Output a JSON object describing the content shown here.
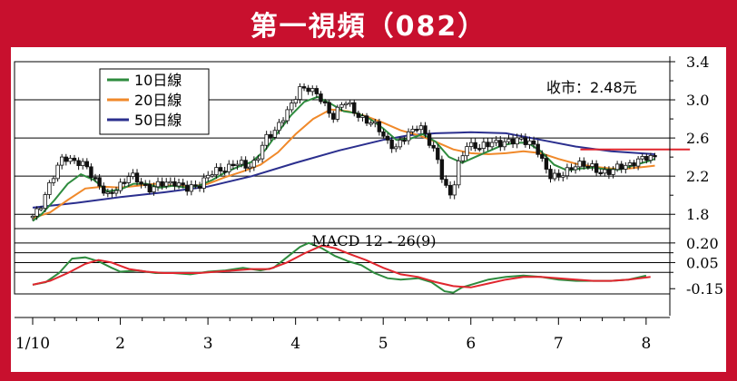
{
  "header": {
    "title": "第一視頻（082）"
  },
  "colors": {
    "frame": "#c8102e",
    "up_candle": "#ffffff",
    "down_candle": "#111111",
    "ma10": "#2e8b3e",
    "ma20": "#f0892a",
    "ma50": "#2b2f8e",
    "price_line": "#e0262e",
    "macd": "#2e8b3e",
    "signal": "#e0262e"
  },
  "chart_data": [
    {
      "type": "candlestick",
      "title": "",
      "price_label": "收市：2.48元",
      "current_price": 2.48,
      "ylim": [
        1.65,
        3.4
      ],
      "y_ticks": [
        {
          "value": 3.4,
          "label": "3.4"
        },
        {
          "value": 3.0,
          "label": "3.0"
        },
        {
          "value": 2.6,
          "label": "2.6"
        },
        {
          "value": 2.2,
          "label": "2.2"
        },
        {
          "value": 1.8,
          "label": "1.8"
        }
      ],
      "grid_values": [
        3.0,
        2.6,
        2.2,
        1.8
      ],
      "grid": true,
      "x_range": [
        1.0,
        8.25
      ],
      "x_ticks": [
        {
          "value": 1.0,
          "label": "1/10"
        },
        {
          "value": 2.0,
          "label": "2"
        },
        {
          "value": 3.0,
          "label": "3"
        },
        {
          "value": 4.0,
          "label": "4"
        },
        {
          "value": 5.0,
          "label": "5"
        },
        {
          "value": 6.0,
          "label": "6"
        },
        {
          "value": 7.0,
          "label": "7"
        },
        {
          "value": 8.0,
          "label": "8"
        }
      ],
      "legend_position": "top-left",
      "legend": [
        {
          "name": "10日線",
          "color_key": "ma10"
        },
        {
          "name": "20日線",
          "color_key": "ma20"
        },
        {
          "name": "50日線",
          "color_key": "ma50"
        }
      ],
      "close_anchors": [
        [
          1.0,
          1.78
        ],
        [
          1.1,
          1.92
        ],
        [
          1.22,
          2.15
        ],
        [
          1.35,
          2.43
        ],
        [
          1.5,
          2.33
        ],
        [
          1.62,
          2.3
        ],
        [
          1.75,
          2.12
        ],
        [
          1.85,
          1.97
        ],
        [
          1.95,
          2.08
        ],
        [
          2.1,
          2.2
        ],
        [
          2.2,
          2.15
        ],
        [
          2.35,
          2.07
        ],
        [
          2.5,
          2.12
        ],
        [
          2.62,
          2.15
        ],
        [
          2.75,
          2.05
        ],
        [
          2.9,
          2.12
        ],
        [
          3.0,
          2.2
        ],
        [
          3.15,
          2.27
        ],
        [
          3.3,
          2.33
        ],
        [
          3.45,
          2.3
        ],
        [
          3.55,
          2.37
        ],
        [
          3.65,
          2.57
        ],
        [
          3.75,
          2.66
        ],
        [
          3.85,
          2.82
        ],
        [
          3.95,
          2.92
        ],
        [
          4.05,
          3.12
        ],
        [
          4.15,
          3.14
        ],
        [
          4.3,
          2.98
        ],
        [
          4.42,
          2.83
        ],
        [
          4.55,
          2.98
        ],
        [
          4.7,
          2.86
        ],
        [
          4.85,
          2.75
        ],
        [
          4.95,
          2.7
        ],
        [
          5.05,
          2.57
        ],
        [
          5.15,
          2.48
        ],
        [
          5.28,
          2.65
        ],
        [
          5.4,
          2.75
        ],
        [
          5.52,
          2.55
        ],
        [
          5.62,
          2.4
        ],
        [
          5.7,
          2.1
        ],
        [
          5.78,
          1.97
        ],
        [
          5.86,
          2.32
        ],
        [
          5.95,
          2.55
        ],
        [
          6.1,
          2.48
        ],
        [
          6.25,
          2.58
        ],
        [
          6.35,
          2.53
        ],
        [
          6.45,
          2.55
        ],
        [
          6.55,
          2.62
        ],
        [
          6.65,
          2.55
        ],
        [
          6.75,
          2.48
        ],
        [
          6.82,
          2.36
        ],
        [
          6.9,
          2.22
        ],
        [
          7.0,
          2.17
        ],
        [
          7.1,
          2.26
        ],
        [
          7.2,
          2.34
        ],
        [
          7.3,
          2.3
        ],
        [
          7.4,
          2.29
        ],
        [
          7.5,
          2.25
        ],
        [
          7.6,
          2.23
        ],
        [
          7.7,
          2.31
        ],
        [
          7.8,
          2.33
        ],
        [
          7.9,
          2.34
        ],
        [
          8.0,
          2.4
        ],
        [
          8.1,
          2.42
        ]
      ],
      "ma10_points": [
        [
          1.0,
          1.73
        ],
        [
          1.1,
          1.8
        ],
        [
          1.25,
          1.95
        ],
        [
          1.4,
          2.12
        ],
        [
          1.55,
          2.22
        ],
        [
          1.7,
          2.16
        ],
        [
          1.85,
          2.04
        ],
        [
          2.0,
          2.06
        ],
        [
          2.15,
          2.12
        ],
        [
          2.3,
          2.12
        ],
        [
          2.45,
          2.08
        ],
        [
          2.6,
          2.1
        ],
        [
          2.75,
          2.08
        ],
        [
          2.9,
          2.1
        ],
        [
          3.05,
          2.16
        ],
        [
          3.2,
          2.24
        ],
        [
          3.35,
          2.3
        ],
        [
          3.5,
          2.35
        ],
        [
          3.65,
          2.47
        ],
        [
          3.8,
          2.66
        ],
        [
          3.95,
          2.84
        ],
        [
          4.1,
          2.98
        ],
        [
          4.25,
          3.03
        ],
        [
          4.4,
          2.96
        ],
        [
          4.55,
          2.88
        ],
        [
          4.7,
          2.86
        ],
        [
          4.85,
          2.8
        ],
        [
          5.0,
          2.7
        ],
        [
          5.15,
          2.58
        ],
        [
          5.3,
          2.59
        ],
        [
          5.45,
          2.64
        ],
        [
          5.6,
          2.56
        ],
        [
          5.75,
          2.4
        ],
        [
          5.9,
          2.34
        ],
        [
          6.05,
          2.4
        ],
        [
          6.2,
          2.46
        ],
        [
          6.35,
          2.52
        ],
        [
          6.5,
          2.55
        ],
        [
          6.65,
          2.55
        ],
        [
          6.8,
          2.46
        ],
        [
          6.95,
          2.32
        ],
        [
          7.1,
          2.26
        ],
        [
          7.25,
          2.28
        ],
        [
          7.4,
          2.29
        ],
        [
          7.55,
          2.27
        ],
        [
          7.7,
          2.27
        ],
        [
          7.85,
          2.31
        ],
        [
          8.0,
          2.35
        ],
        [
          8.1,
          2.38
        ]
      ],
      "ma20_points": [
        [
          1.0,
          1.76
        ],
        [
          1.2,
          1.82
        ],
        [
          1.4,
          1.95
        ],
        [
          1.6,
          2.07
        ],
        [
          1.8,
          2.09
        ],
        [
          2.0,
          2.08
        ],
        [
          2.2,
          2.1
        ],
        [
          2.4,
          2.12
        ],
        [
          2.6,
          2.1
        ],
        [
          2.8,
          2.09
        ],
        [
          3.0,
          2.12
        ],
        [
          3.2,
          2.19
        ],
        [
          3.4,
          2.25
        ],
        [
          3.6,
          2.32
        ],
        [
          3.8,
          2.45
        ],
        [
          4.0,
          2.64
        ],
        [
          4.2,
          2.8
        ],
        [
          4.4,
          2.9
        ],
        [
          4.6,
          2.88
        ],
        [
          4.8,
          2.83
        ],
        [
          5.0,
          2.76
        ],
        [
          5.2,
          2.68
        ],
        [
          5.4,
          2.63
        ],
        [
          5.6,
          2.56
        ],
        [
          5.8,
          2.48
        ],
        [
          6.0,
          2.44
        ],
        [
          6.2,
          2.43
        ],
        [
          6.4,
          2.44
        ],
        [
          6.6,
          2.46
        ],
        [
          6.8,
          2.44
        ],
        [
          7.0,
          2.38
        ],
        [
          7.2,
          2.33
        ],
        [
          7.4,
          2.3
        ],
        [
          7.6,
          2.28
        ],
        [
          7.8,
          2.28
        ],
        [
          8.0,
          2.3
        ],
        [
          8.1,
          2.31
        ]
      ],
      "ma50_points": [
        [
          1.0,
          1.87
        ],
        [
          1.5,
          1.92
        ],
        [
          2.0,
          1.98
        ],
        [
          2.5,
          2.03
        ],
        [
          3.0,
          2.09
        ],
        [
          3.5,
          2.2
        ],
        [
          4.0,
          2.34
        ],
        [
          4.5,
          2.47
        ],
        [
          5.0,
          2.58
        ],
        [
          5.3,
          2.63
        ],
        [
          5.6,
          2.65
        ],
        [
          6.0,
          2.66
        ],
        [
          6.4,
          2.65
        ],
        [
          6.8,
          2.58
        ],
        [
          7.2,
          2.51
        ],
        [
          7.6,
          2.46
        ],
        [
          8.1,
          2.43
        ]
      ]
    },
    {
      "type": "line",
      "title": "MACD 12 - 26(9)",
      "ylim": [
        -0.19,
        0.31
      ],
      "y_ticks": [
        {
          "value": 0.2,
          "label": "0.20"
        },
        {
          "value": 0.05,
          "label": "0.05"
        },
        {
          "value": -0.15,
          "label": "-0.15"
        }
      ],
      "grid_values": [
        0.2,
        0.125,
        0.05,
        -0.025
      ],
      "grid": true,
      "series": [
        {
          "color_key": "macd",
          "points": [
            [
              1.0,
              -0.12
            ],
            [
              1.15,
              -0.1
            ],
            [
              1.3,
              -0.03
            ],
            [
              1.45,
              0.08
            ],
            [
              1.6,
              0.09
            ],
            [
              1.75,
              0.06
            ],
            [
              1.9,
              0.01
            ],
            [
              2.0,
              -0.02
            ],
            [
              2.2,
              -0.01
            ],
            [
              2.4,
              -0.03
            ],
            [
              2.6,
              -0.03
            ],
            [
              2.8,
              -0.04
            ],
            [
              3.0,
              -0.02
            ],
            [
              3.2,
              -0.01
            ],
            [
              3.4,
              0.01
            ],
            [
              3.6,
              -0.01
            ],
            [
              3.75,
              0.01
            ],
            [
              3.9,
              0.09
            ],
            [
              4.05,
              0.17
            ],
            [
              4.15,
              0.2
            ],
            [
              4.3,
              0.16
            ],
            [
              4.45,
              0.1
            ],
            [
              4.6,
              0.06
            ],
            [
              4.75,
              0.03
            ],
            [
              4.9,
              -0.03
            ],
            [
              5.05,
              -0.07
            ],
            [
              5.2,
              -0.08
            ],
            [
              5.4,
              -0.07
            ],
            [
              5.55,
              -0.1
            ],
            [
              5.7,
              -0.17
            ],
            [
              5.8,
              -0.18
            ],
            [
              5.9,
              -0.14
            ],
            [
              6.0,
              -0.12
            ],
            [
              6.2,
              -0.08
            ],
            [
              6.4,
              -0.06
            ],
            [
              6.6,
              -0.05
            ],
            [
              6.8,
              -0.06
            ],
            [
              7.0,
              -0.08
            ],
            [
              7.2,
              -0.09
            ],
            [
              7.4,
              -0.09
            ],
            [
              7.6,
              -0.09
            ],
            [
              7.8,
              -0.08
            ],
            [
              8.0,
              -0.05
            ]
          ]
        },
        {
          "color_key": "signal",
          "points": [
            [
              1.0,
              -0.12
            ],
            [
              1.2,
              -0.09
            ],
            [
              1.4,
              -0.03
            ],
            [
              1.6,
              0.04
            ],
            [
              1.75,
              0.07
            ],
            [
              1.9,
              0.05
            ],
            [
              2.1,
              0.0
            ],
            [
              2.3,
              -0.02
            ],
            [
              2.5,
              -0.03
            ],
            [
              2.7,
              -0.03
            ],
            [
              2.9,
              -0.03
            ],
            [
              3.1,
              -0.02
            ],
            [
              3.3,
              -0.01
            ],
            [
              3.5,
              0.0
            ],
            [
              3.7,
              0.0
            ],
            [
              3.9,
              0.05
            ],
            [
              4.1,
              0.12
            ],
            [
              4.3,
              0.18
            ],
            [
              4.45,
              0.16
            ],
            [
              4.6,
              0.12
            ],
            [
              4.8,
              0.07
            ],
            [
              5.0,
              0.01
            ],
            [
              5.2,
              -0.04
            ],
            [
              5.4,
              -0.06
            ],
            [
              5.6,
              -0.1
            ],
            [
              5.8,
              -0.13
            ],
            [
              6.0,
              -0.14
            ],
            [
              6.2,
              -0.11
            ],
            [
              6.4,
              -0.08
            ],
            [
              6.6,
              -0.06
            ],
            [
              6.8,
              -0.06
            ],
            [
              7.0,
              -0.07
            ],
            [
              7.2,
              -0.08
            ],
            [
              7.4,
              -0.09
            ],
            [
              7.6,
              -0.09
            ],
            [
              7.8,
              -0.08
            ],
            [
              8.05,
              -0.06
            ]
          ]
        }
      ]
    }
  ]
}
